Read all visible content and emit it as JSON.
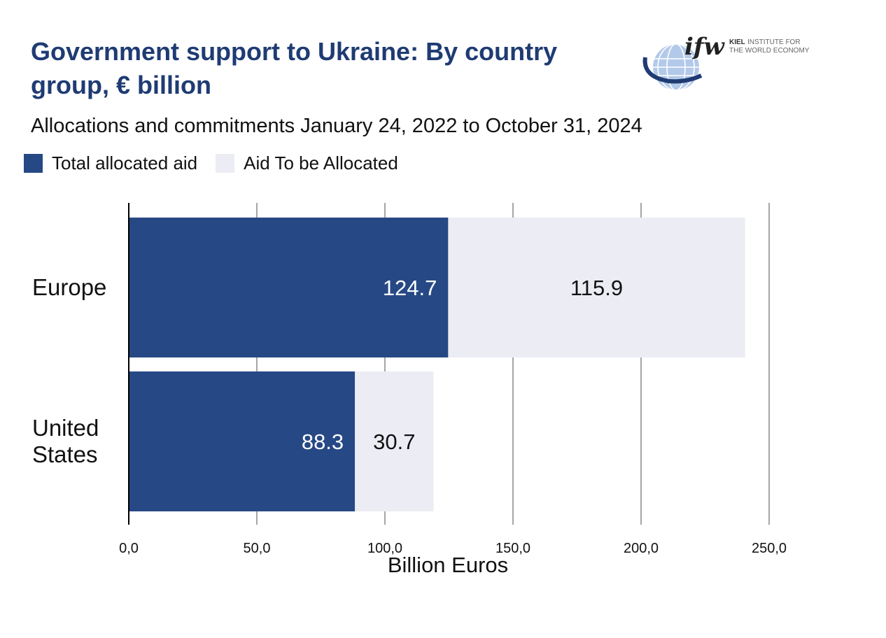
{
  "header": {
    "title": "Government support to Ukraine: By country group, € billion",
    "subtitle": "Allocations and commitments January 24, 2022 to October 31, 2024"
  },
  "logo": {
    "mark": "ifw",
    "line1": "KIEL",
    "line1_rest": "INSTITUTE FOR",
    "line2": "THE WORLD ECONOMY"
  },
  "legend": [
    {
      "label": "Total allocated aid",
      "color": "#264885"
    },
    {
      "label": "Aid To be Allocated",
      "color": "#ecedf4"
    }
  ],
  "chart_data": {
    "type": "bar",
    "orientation": "horizontal",
    "stacked": true,
    "categories": [
      [
        "Europe"
      ],
      [
        "United",
        "States"
      ]
    ],
    "series": [
      {
        "name": "Total allocated aid",
        "values": [
          124.7,
          88.3
        ],
        "labels": [
          "124.7",
          "88.3"
        ],
        "color": "#264885",
        "label_color": "#ffffff"
      },
      {
        "name": "Aid To be Allocated",
        "values": [
          115.9,
          30.7
        ],
        "labels": [
          "115.9",
          "30.7"
        ],
        "color": "#ecedf4",
        "label_color": "#111111"
      }
    ],
    "xlabel": "Billion Euros",
    "xlim": [
      0,
      250
    ],
    "xticks": [
      0,
      50,
      100,
      150,
      200,
      250
    ],
    "xtick_labels": [
      "0,0",
      "50,0",
      "100,0",
      "150,0",
      "200,0",
      "250,0"
    ],
    "grid": true,
    "legend_position": "top-left"
  }
}
